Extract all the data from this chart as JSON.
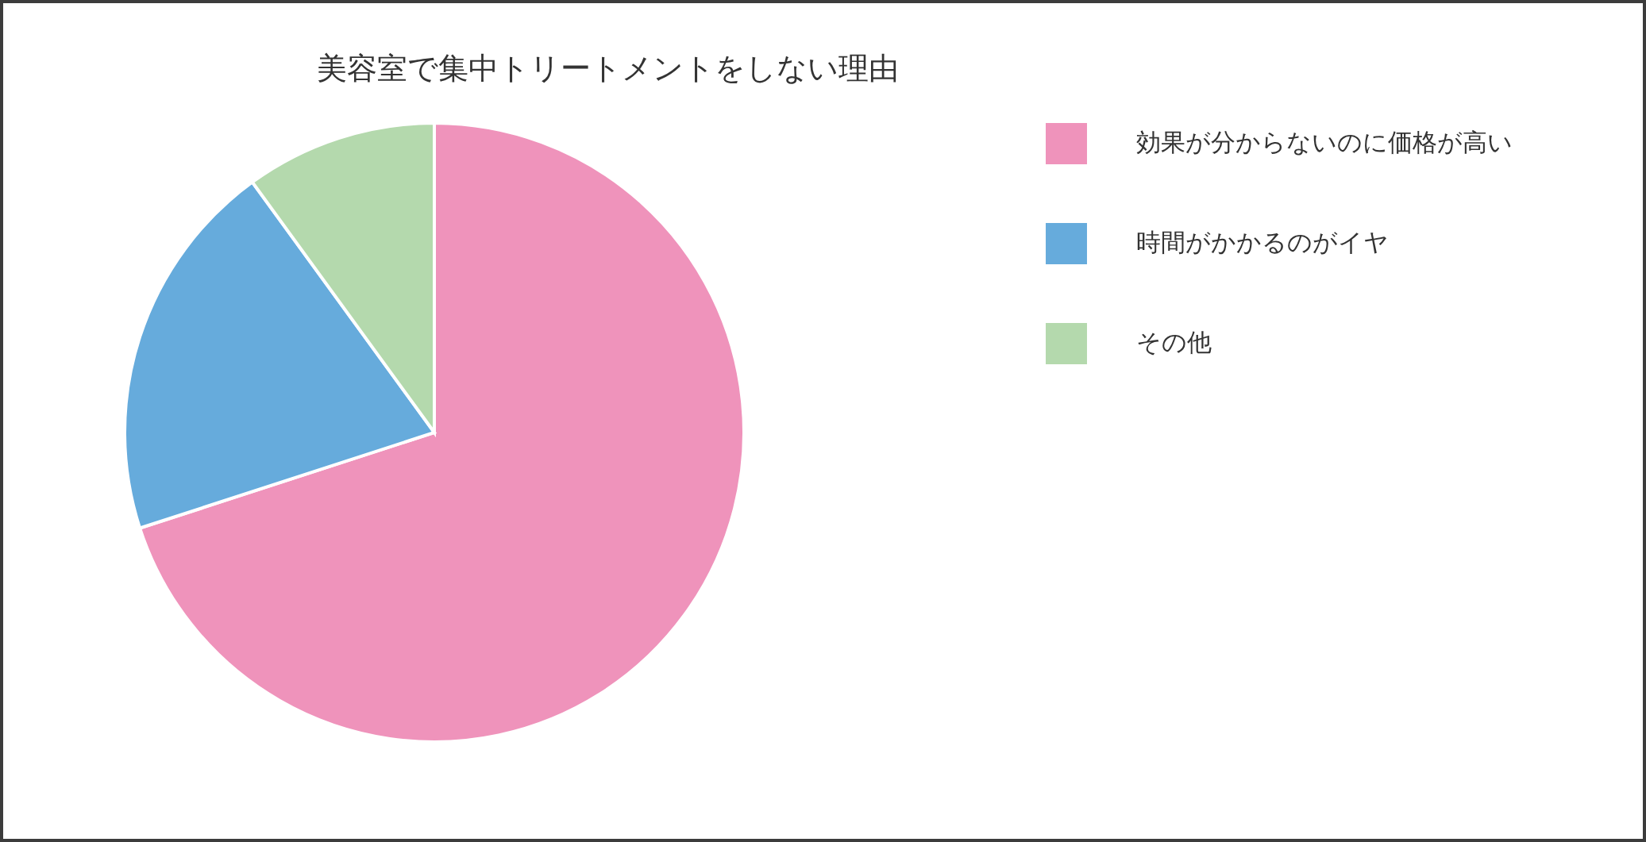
{
  "chart_data": {
    "type": "pie",
    "title": "美容室で集中トリートメントをしない理由",
    "categories": [
      "効果が分からないのに価格が高い",
      "時間がかかるのがイヤ",
      "その他"
    ],
    "values": [
      70,
      20,
      10
    ],
    "colors": [
      "#ef93bb",
      "#66abdc",
      "#b4d9ad"
    ],
    "legend": "right"
  }
}
